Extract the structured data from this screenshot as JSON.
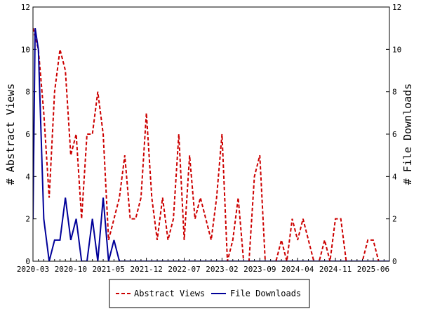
{
  "chart_data": {
    "type": "line",
    "x_labels": [
      "2020-03",
      "2020-10",
      "2021-05",
      "2021-12",
      "2022-07",
      "2023-02",
      "2023-09",
      "2024-04",
      "2024-11",
      "2025-06"
    ],
    "x_tick_minor_per_major": 7,
    "x_range_months": [
      0,
      66
    ],
    "y_left": {
      "label": "# Abstract Views",
      "ticks": [
        0,
        2,
        4,
        6,
        8,
        10,
        12
      ],
      "range": [
        0,
        12
      ]
    },
    "y_right": {
      "label": "# File Downloads",
      "ticks": [
        0,
        2,
        4,
        6,
        8,
        10,
        12
      ],
      "range": [
        0,
        12
      ]
    },
    "legend": {
      "placement": "bottom-center"
    },
    "series": [
      {
        "name": "Abstract Views",
        "color": "#cc0000",
        "dash": "dashed",
        "points": [
          [
            0,
            11
          ],
          [
            1,
            10
          ],
          [
            2,
            7
          ],
          [
            3,
            3
          ],
          [
            4,
            8
          ],
          [
            5,
            10
          ],
          [
            6,
            9
          ],
          [
            7,
            5
          ],
          [
            8,
            6
          ],
          [
            9,
            2
          ],
          [
            10,
            6
          ],
          [
            11,
            6
          ],
          [
            12,
            8
          ],
          [
            13,
            6
          ],
          [
            14,
            1
          ],
          [
            15,
            2
          ],
          [
            16,
            3
          ],
          [
            17,
            5
          ],
          [
            18,
            2
          ],
          [
            19,
            2
          ],
          [
            20,
            3
          ],
          [
            21,
            7
          ],
          [
            22,
            3
          ],
          [
            23,
            1
          ],
          [
            24,
            3
          ],
          [
            25,
            1
          ],
          [
            26,
            2
          ],
          [
            27,
            6
          ],
          [
            28,
            1
          ],
          [
            29,
            5
          ],
          [
            30,
            2
          ],
          [
            31,
            3
          ],
          [
            32,
            2
          ],
          [
            33,
            1
          ],
          [
            34,
            3
          ],
          [
            35,
            6
          ],
          [
            36,
            0
          ],
          [
            37,
            1
          ],
          [
            38,
            3
          ],
          [
            39,
            0
          ],
          [
            40,
            0
          ],
          [
            41,
            4
          ],
          [
            42,
            5
          ],
          [
            43,
            0
          ],
          [
            44,
            0
          ],
          [
            45,
            0
          ],
          [
            46,
            1
          ],
          [
            47,
            0
          ],
          [
            48,
            2
          ],
          [
            49,
            1
          ],
          [
            50,
            2
          ],
          [
            51,
            1
          ],
          [
            52,
            0
          ],
          [
            53,
            0
          ],
          [
            54,
            1
          ],
          [
            55,
            0
          ],
          [
            56,
            2
          ],
          [
            57,
            2
          ],
          [
            58,
            0
          ],
          [
            59,
            0
          ],
          [
            60,
            0
          ],
          [
            61,
            0
          ],
          [
            62,
            1
          ],
          [
            63,
            1
          ],
          [
            64,
            0
          ],
          [
            65,
            0
          ],
          [
            66,
            0
          ]
        ]
      },
      {
        "name": "File Downloads",
        "color": "#000099",
        "dash": "solid",
        "points": [
          [
            0,
            2
          ],
          [
            0.4,
            11
          ],
          [
            1,
            10
          ],
          [
            2,
            2
          ],
          [
            3,
            0
          ],
          [
            4,
            1
          ],
          [
            5,
            1
          ],
          [
            6,
            3
          ],
          [
            7,
            1
          ],
          [
            8,
            2
          ],
          [
            9,
            0
          ],
          [
            10,
            0
          ],
          [
            11,
            2
          ],
          [
            12,
            0
          ],
          [
            13,
            3
          ],
          [
            14,
            0
          ],
          [
            15,
            1
          ],
          [
            16,
            0
          ],
          [
            17,
            0
          ],
          [
            18,
            0
          ],
          [
            19,
            0
          ],
          [
            20,
            0
          ],
          [
            21,
            0
          ],
          [
            22,
            0
          ],
          [
            23,
            0
          ],
          [
            24,
            0
          ],
          [
            25,
            0
          ],
          [
            26,
            0
          ],
          [
            27,
            0
          ],
          [
            28,
            0
          ],
          [
            29,
            0
          ],
          [
            30,
            0
          ],
          [
            31,
            0
          ],
          [
            32,
            0
          ],
          [
            33,
            0
          ],
          [
            34,
            0
          ],
          [
            35,
            0
          ],
          [
            36,
            0
          ],
          [
            37,
            0
          ],
          [
            38,
            0
          ],
          [
            39,
            0
          ],
          [
            40,
            0
          ],
          [
            41,
            0
          ],
          [
            42,
            0
          ],
          [
            43,
            0
          ],
          [
            44,
            0
          ],
          [
            45,
            0
          ],
          [
            46,
            0
          ],
          [
            47,
            0
          ],
          [
            48,
            0
          ],
          [
            49,
            0
          ],
          [
            50,
            0
          ],
          [
            51,
            0
          ],
          [
            52,
            0
          ],
          [
            53,
            0
          ],
          [
            54,
            0
          ],
          [
            55,
            0
          ],
          [
            56,
            0
          ],
          [
            57,
            0
          ],
          [
            58,
            0
          ],
          [
            59,
            0
          ],
          [
            60,
            0
          ],
          [
            61,
            0
          ],
          [
            62,
            0
          ],
          [
            63,
            0
          ],
          [
            64,
            0
          ],
          [
            65,
            0
          ],
          [
            66,
            0
          ]
        ]
      }
    ]
  }
}
